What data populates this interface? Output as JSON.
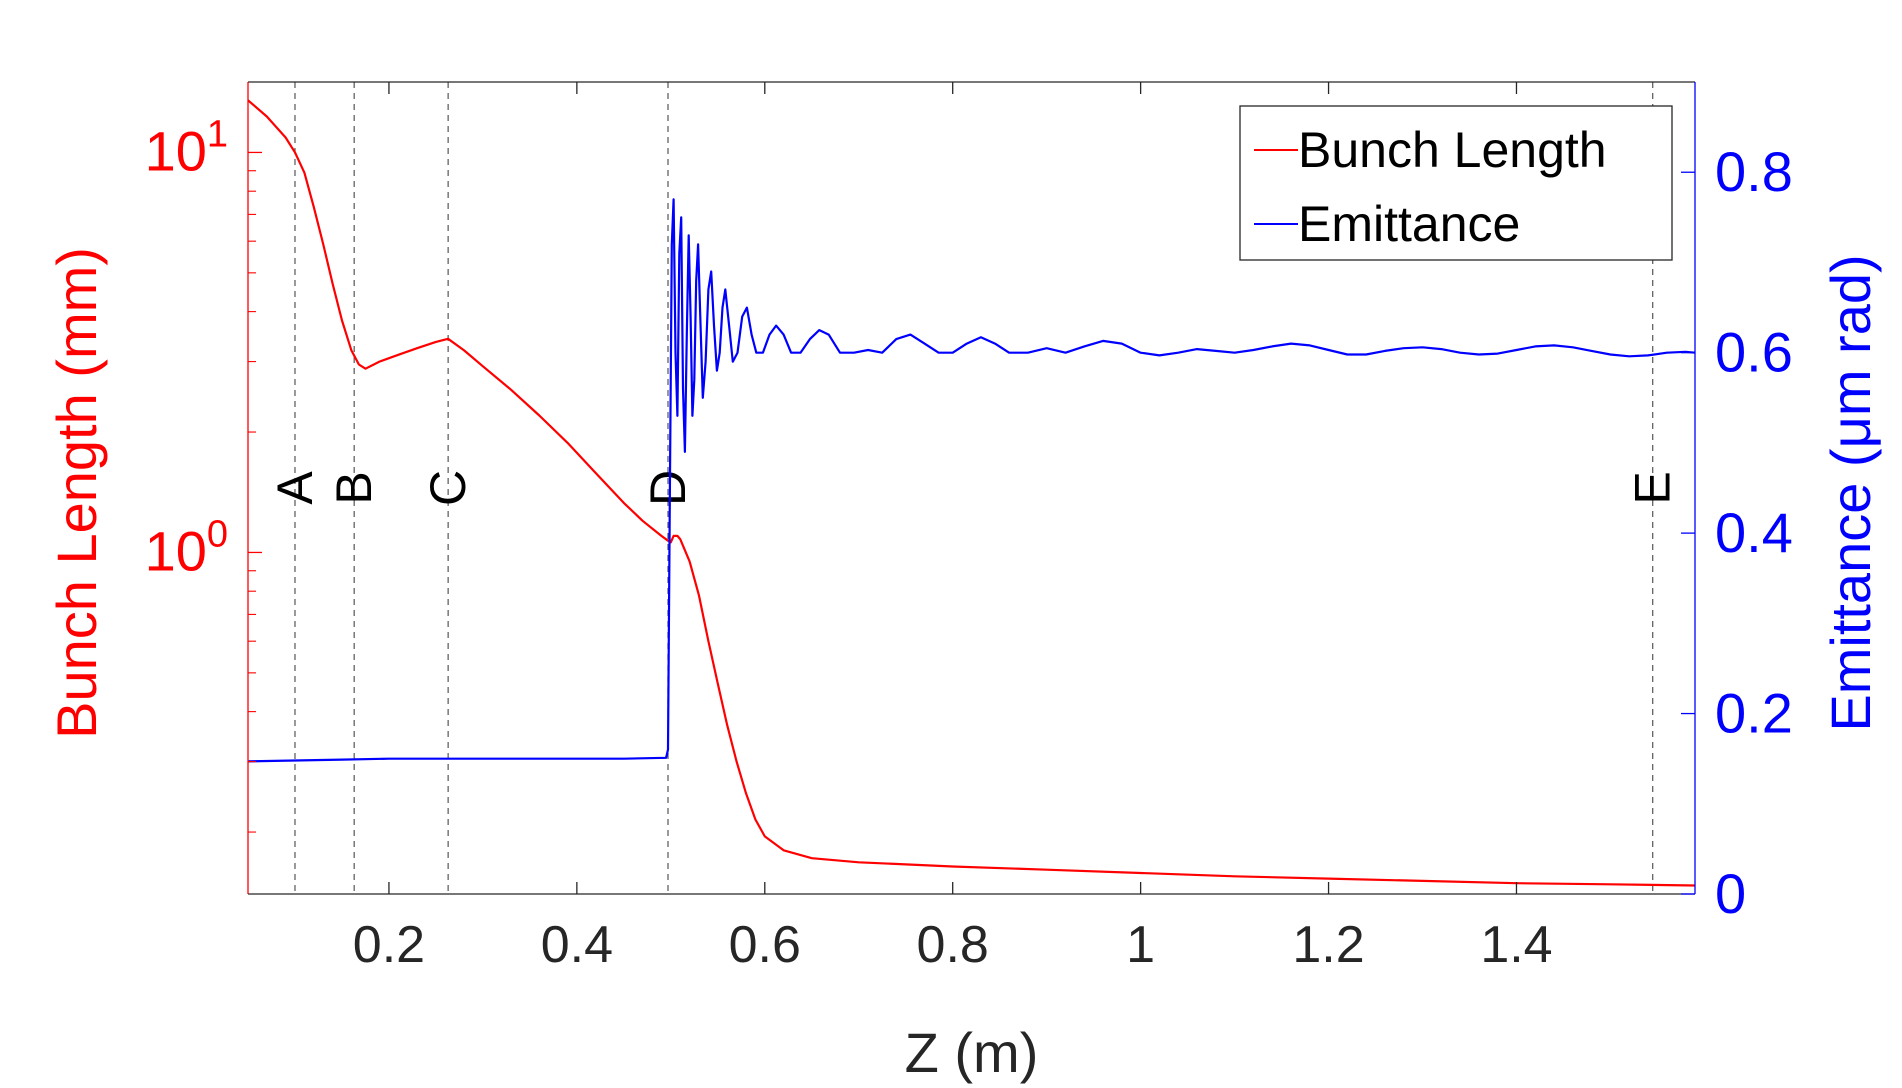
{
  "chart_data": {
    "type": "line",
    "title": "",
    "xlabel": "Z (m)",
    "ylabel_left": "Bunch Length (mm)",
    "ylabel_right": "Emittance (μm rad)",
    "xlim": [
      0.05,
      1.59
    ],
    "ylim_left": [
      0.14,
      15
    ],
    "ylim_right": [
      0,
      0.9
    ],
    "left_scale": "log",
    "right_scale": "linear",
    "grid": false,
    "legend_position": "top-right",
    "x_ticks": [
      {
        "value": 0.2,
        "label": "0.2"
      },
      {
        "value": 0.4,
        "label": "0.4"
      },
      {
        "value": 0.6,
        "label": "0.6"
      },
      {
        "value": 0.8,
        "label": "0.8"
      },
      {
        "value": 1.0,
        "label": "1"
      },
      {
        "value": 1.2,
        "label": "1.2"
      },
      {
        "value": 1.4,
        "label": "1.4"
      }
    ],
    "left_ticks": [
      {
        "value": 1,
        "base": "10",
        "exp": "0"
      },
      {
        "value": 10,
        "base": "10",
        "exp": "1"
      }
    ],
    "right_ticks": [
      {
        "value": 0,
        "label": "0"
      },
      {
        "value": 0.2,
        "label": "0.2"
      },
      {
        "value": 0.4,
        "label": "0.4"
      },
      {
        "value": 0.6,
        "label": "0.6"
      },
      {
        "value": 0.8,
        "label": "0.8"
      }
    ],
    "markers": [
      {
        "x": 0.1,
        "label": "A"
      },
      {
        "x": 0.163,
        "label": "B"
      },
      {
        "x": 0.263,
        "label": "C"
      },
      {
        "x": 0.497,
        "label": "D"
      },
      {
        "x": 1.545,
        "label": "E"
      }
    ],
    "series": [
      {
        "name": "Bunch Length",
        "color": "#ff0000",
        "axis": "left",
        "points": [
          [
            0.05,
            13.5
          ],
          [
            0.07,
            12.3
          ],
          [
            0.09,
            10.9
          ],
          [
            0.1,
            10.0
          ],
          [
            0.11,
            8.9
          ],
          [
            0.12,
            7.3
          ],
          [
            0.13,
            5.9
          ],
          [
            0.14,
            4.7
          ],
          [
            0.15,
            3.8
          ],
          [
            0.16,
            3.2
          ],
          [
            0.168,
            2.95
          ],
          [
            0.175,
            2.88
          ],
          [
            0.19,
            3.0
          ],
          [
            0.21,
            3.12
          ],
          [
            0.23,
            3.24
          ],
          [
            0.25,
            3.36
          ],
          [
            0.263,
            3.42
          ],
          [
            0.28,
            3.2
          ],
          [
            0.3,
            2.92
          ],
          [
            0.33,
            2.55
          ],
          [
            0.36,
            2.2
          ],
          [
            0.39,
            1.88
          ],
          [
            0.42,
            1.58
          ],
          [
            0.45,
            1.33
          ],
          [
            0.47,
            1.2
          ],
          [
            0.49,
            1.1
          ],
          [
            0.497,
            1.07
          ],
          [
            0.5,
            1.06
          ],
          [
            0.503,
            1.1
          ],
          [
            0.507,
            1.1
          ],
          [
            0.51,
            1.08
          ],
          [
            0.52,
            0.95
          ],
          [
            0.53,
            0.78
          ],
          [
            0.54,
            0.6
          ],
          [
            0.55,
            0.47
          ],
          [
            0.56,
            0.37
          ],
          [
            0.57,
            0.3
          ],
          [
            0.58,
            0.25
          ],
          [
            0.59,
            0.215
          ],
          [
            0.6,
            0.195
          ],
          [
            0.62,
            0.18
          ],
          [
            0.65,
            0.172
          ],
          [
            0.7,
            0.168
          ],
          [
            0.8,
            0.164
          ],
          [
            0.9,
            0.161
          ],
          [
            1.0,
            0.158
          ],
          [
            1.1,
            0.155
          ],
          [
            1.2,
            0.153
          ],
          [
            1.3,
            0.151
          ],
          [
            1.4,
            0.149
          ],
          [
            1.5,
            0.148
          ],
          [
            1.59,
            0.147
          ]
        ]
      },
      {
        "name": "Emittance",
        "color": "#0000ff",
        "axis": "right",
        "points": [
          [
            0.05,
            0.147
          ],
          [
            0.1,
            0.148
          ],
          [
            0.15,
            0.149
          ],
          [
            0.2,
            0.15
          ],
          [
            0.25,
            0.15
          ],
          [
            0.3,
            0.15
          ],
          [
            0.35,
            0.15
          ],
          [
            0.4,
            0.15
          ],
          [
            0.45,
            0.15
          ],
          [
            0.495,
            0.151
          ],
          [
            0.497,
            0.16
          ],
          [
            0.499,
            0.45
          ],
          [
            0.501,
            0.72
          ],
          [
            0.503,
            0.77
          ],
          [
            0.505,
            0.6
          ],
          [
            0.507,
            0.53
          ],
          [
            0.509,
            0.71
          ],
          [
            0.511,
            0.75
          ],
          [
            0.513,
            0.56
          ],
          [
            0.515,
            0.49
          ],
          [
            0.517,
            0.62
          ],
          [
            0.519,
            0.73
          ],
          [
            0.521,
            0.64
          ],
          [
            0.523,
            0.53
          ],
          [
            0.525,
            0.57
          ],
          [
            0.527,
            0.68
          ],
          [
            0.529,
            0.72
          ],
          [
            0.531,
            0.65
          ],
          [
            0.534,
            0.55
          ],
          [
            0.537,
            0.59
          ],
          [
            0.54,
            0.67
          ],
          [
            0.543,
            0.69
          ],
          [
            0.546,
            0.63
          ],
          [
            0.549,
            0.58
          ],
          [
            0.552,
            0.6
          ],
          [
            0.555,
            0.65
          ],
          [
            0.558,
            0.67
          ],
          [
            0.562,
            0.63
          ],
          [
            0.566,
            0.59
          ],
          [
            0.571,
            0.6
          ],
          [
            0.576,
            0.64
          ],
          [
            0.581,
            0.65
          ],
          [
            0.586,
            0.62
          ],
          [
            0.591,
            0.6
          ],
          [
            0.598,
            0.6
          ],
          [
            0.605,
            0.62
          ],
          [
            0.612,
            0.63
          ],
          [
            0.62,
            0.62
          ],
          [
            0.628,
            0.6
          ],
          [
            0.638,
            0.6
          ],
          [
            0.648,
            0.615
          ],
          [
            0.658,
            0.625
          ],
          [
            0.668,
            0.62
          ],
          [
            0.68,
            0.6
          ],
          [
            0.695,
            0.6
          ],
          [
            0.71,
            0.603
          ],
          [
            0.725,
            0.6
          ],
          [
            0.74,
            0.615
          ],
          [
            0.755,
            0.62
          ],
          [
            0.77,
            0.61
          ],
          [
            0.785,
            0.6
          ],
          [
            0.8,
            0.6
          ],
          [
            0.815,
            0.61
          ],
          [
            0.83,
            0.617
          ],
          [
            0.845,
            0.61
          ],
          [
            0.86,
            0.6
          ],
          [
            0.88,
            0.6
          ],
          [
            0.9,
            0.605
          ],
          [
            0.92,
            0.6
          ],
          [
            0.94,
            0.607
          ],
          [
            0.96,
            0.613
          ],
          [
            0.98,
            0.61
          ],
          [
            1.0,
            0.6
          ],
          [
            1.02,
            0.597
          ],
          [
            1.04,
            0.6
          ],
          [
            1.06,
            0.604
          ],
          [
            1.08,
            0.602
          ],
          [
            1.1,
            0.6
          ],
          [
            1.12,
            0.603
          ],
          [
            1.14,
            0.607
          ],
          [
            1.16,
            0.61
          ],
          [
            1.18,
            0.608
          ],
          [
            1.2,
            0.603
          ],
          [
            1.22,
            0.598
          ],
          [
            1.24,
            0.598
          ],
          [
            1.26,
            0.602
          ],
          [
            1.28,
            0.605
          ],
          [
            1.3,
            0.606
          ],
          [
            1.32,
            0.604
          ],
          [
            1.34,
            0.6
          ],
          [
            1.36,
            0.598
          ],
          [
            1.38,
            0.599
          ],
          [
            1.4,
            0.603
          ],
          [
            1.42,
            0.607
          ],
          [
            1.44,
            0.608
          ],
          [
            1.46,
            0.606
          ],
          [
            1.48,
            0.602
          ],
          [
            1.5,
            0.598
          ],
          [
            1.52,
            0.596
          ],
          [
            1.54,
            0.597
          ],
          [
            1.56,
            0.6
          ],
          [
            1.58,
            0.601
          ],
          [
            1.59,
            0.6
          ]
        ]
      }
    ]
  }
}
